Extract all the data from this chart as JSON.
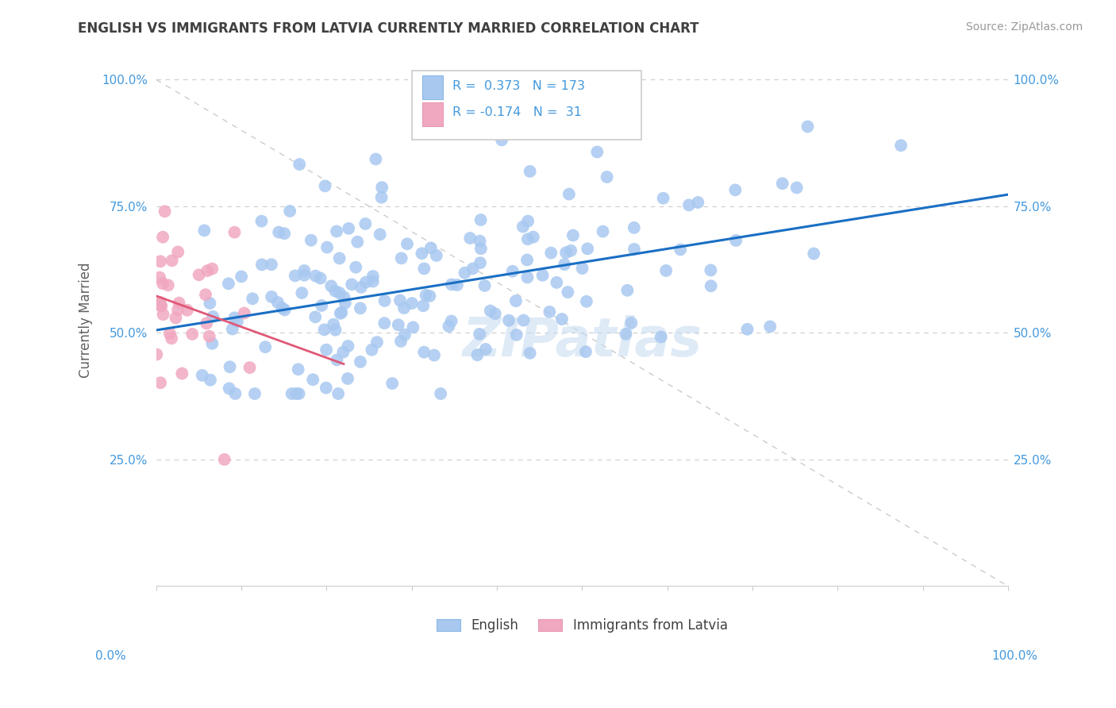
{
  "title": "ENGLISH VS IMMIGRANTS FROM LATVIA CURRENTLY MARRIED CORRELATION CHART",
  "source": "Source: ZipAtlas.com",
  "ylabel": "Currently Married",
  "english_R": 0.373,
  "english_N": 173,
  "latvia_R": -0.174,
  "latvia_N": 31,
  "english_color": "#a8c8f0",
  "english_line_color": "#1a6fc4",
  "latvia_color": "#f0a8c0",
  "latvia_line_color": "#e05878",
  "diagonal_color": "#cccccc",
  "title_color": "#404040",
  "stats_color": "#4499dd",
  "source_color": "#999999",
  "watermark": "ZIPatlas",
  "watermark_color": "#c8dcf0",
  "axis_label_color": "#4499dd",
  "ylabel_color": "#606060"
}
